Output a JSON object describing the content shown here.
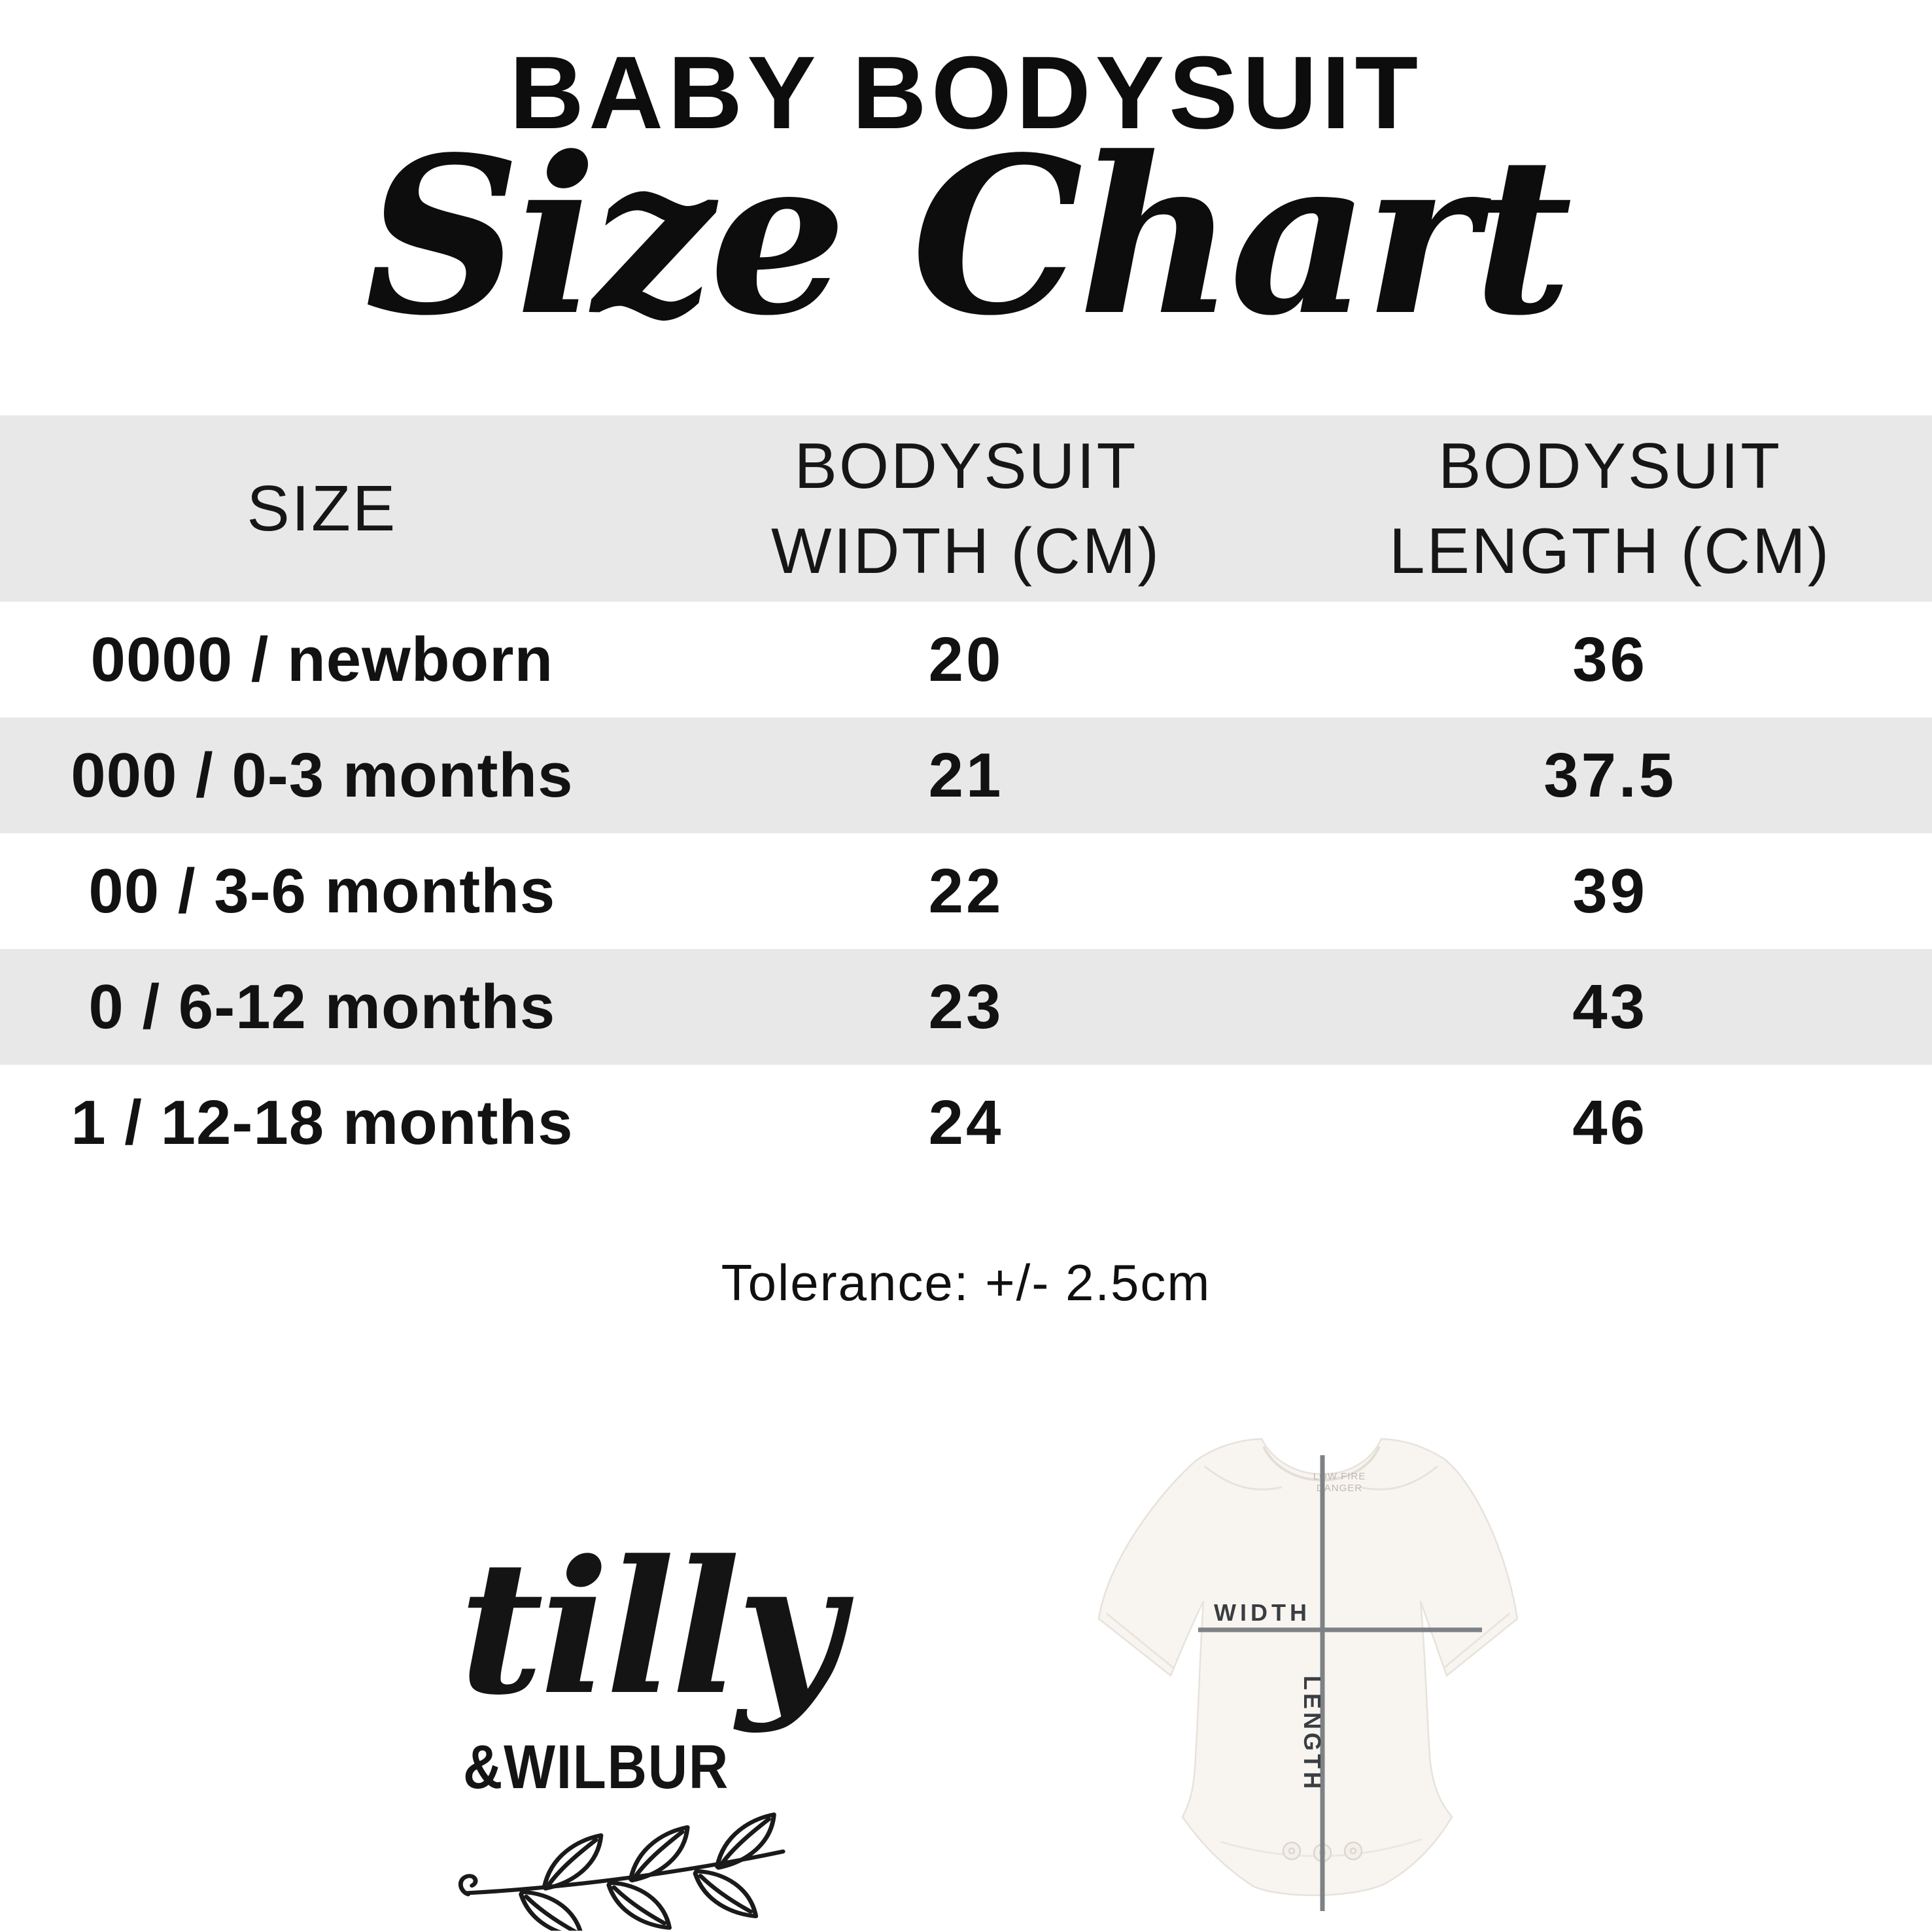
{
  "header": {
    "title": "BABY BODYSUIT",
    "subtitle": "Size Chart"
  },
  "table": {
    "columns": [
      "SIZE",
      "BODYSUIT\nWIDTH (CM)",
      "BODYSUIT\nLENGTH (CM)"
    ],
    "rows": [
      {
        "size": "0000 / newborn",
        "width_cm": "20",
        "length_cm": "36"
      },
      {
        "size": "000 / 0-3 months",
        "width_cm": "21",
        "length_cm": "37.5"
      },
      {
        "size": "00 / 3-6 months",
        "width_cm": "22",
        "length_cm": "39"
      },
      {
        "size": "0 / 6-12 months",
        "width_cm": "23",
        "length_cm": "43"
      },
      {
        "size": "1 / 12-18 months",
        "width_cm": "24",
        "length_cm": "46"
      }
    ]
  },
  "notes": {
    "tolerance": "Tolerance: +/- 2.5cm"
  },
  "brand": {
    "script": "tilly",
    "caps": "&WILBUR"
  },
  "diagram": {
    "width_label": "WIDTH",
    "length_label": "LENGTH",
    "tag_line1": "LOW FIRE",
    "tag_line2": "DANGER"
  },
  "colors": {
    "band_gray": "#e8e8e8",
    "ink": "#0d0d0d",
    "measure_line_gray": "#7e8285",
    "measure_label_gray": "#3a3e42",
    "suit_fill": "#f8f5f1",
    "suit_outline": "#e7e2db"
  },
  "chart_data": {
    "type": "table",
    "title": "BABY BODYSUIT Size Chart",
    "columns": [
      "SIZE",
      "BODYSUIT WIDTH (CM)",
      "BODYSUIT LENGTH (CM)"
    ],
    "rows": [
      [
        "0000 / newborn",
        20,
        36
      ],
      [
        "000 / 0-3 months",
        21,
        37.5
      ],
      [
        "00 / 3-6 months",
        22,
        39
      ],
      [
        "0 / 6-12 months",
        23,
        43
      ],
      [
        "1 / 12-18 months",
        24,
        46
      ]
    ],
    "note": "Tolerance: +/- 2.5cm",
    "legend_position": "none",
    "grid": "alternating-row-bands"
  }
}
